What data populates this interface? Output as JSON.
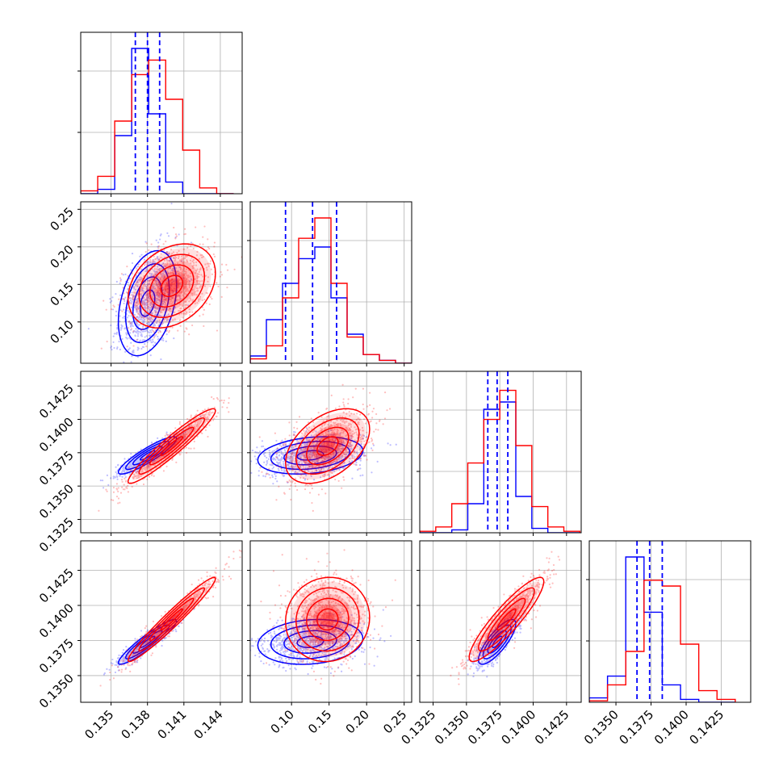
{
  "chart_data": {
    "type": "corner",
    "parameters": [
      {
        "id": "p1",
        "xlim": [
          0.1325,
          0.1458
        ],
        "ticks": [
          0.135,
          0.138,
          0.141,
          0.144
        ],
        "tick_labels": [
          "0.135",
          "0.138",
          "0.141",
          "0.144"
        ]
      },
      {
        "id": "p2",
        "xlim": [
          0.045,
          0.26
        ],
        "ticks": [
          0.1,
          0.15,
          0.2,
          0.25
        ],
        "tick_labels": [
          "0.10",
          "0.15",
          "0.20",
          "0.25"
        ]
      },
      {
        "id": "p3",
        "xlim": [
          0.1315,
          0.1436
        ],
        "ticks": [
          0.1325,
          0.135,
          0.1375,
          0.14,
          0.1425
        ],
        "tick_labels": [
          "0.1325",
          "0.1350",
          "0.1375",
          "0.1400",
          "0.1425"
        ]
      },
      {
        "id": "p4",
        "xlim": [
          0.1331,
          0.1446
        ],
        "ticks": [
          0.135,
          0.1375,
          0.14,
          0.1425
        ],
        "tick_labels": [
          "0.1350",
          "0.1375",
          "0.1400",
          "0.1425"
        ]
      }
    ],
    "series": [
      {
        "color": "#0000ff",
        "quantiles": [
          [
            0.137,
            0.138,
            0.139
          ],
          [
            0.092,
            0.128,
            0.16
          ],
          [
            0.1366,
            0.1373,
            0.1381
          ],
          [
            0.1365,
            0.1374,
            0.1383
          ]
        ],
        "means": [
          0.138,
          0.125,
          0.1373,
          0.1374
        ],
        "sds": [
          0.0012,
          0.035,
          0.0007,
          0.0008
        ],
        "hist_edges": [
          [
            0.1325,
            0.1339,
            0.1353,
            0.1367,
            0.1381,
            0.1395,
            0.1409,
            0.1423,
            0.1437,
            0.1451
          ],
          [
            0.045,
            0.0665,
            0.088,
            0.1095,
            0.131,
            0.1525,
            0.174,
            0.1955,
            0.217,
            0.2385,
            0.26
          ],
          [
            0.1315,
            0.1327,
            0.1339,
            0.1351,
            0.1363,
            0.1375,
            0.1387,
            0.1399,
            0.1411,
            0.1423,
            0.1435
          ],
          [
            0.1331,
            0.1344,
            0.1357,
            0.137,
            0.1383,
            0.1396,
            0.1409,
            0.1422,
            0.1435
          ]
        ],
        "hist": [
          [
            0,
            3,
            40,
            100,
            55,
            8,
            0,
            0,
            0
          ],
          [
            5,
            30,
            55,
            72,
            80,
            45,
            20,
            6,
            2,
            0
          ],
          [
            0,
            0,
            2,
            20,
            85,
            90,
            25,
            3,
            0,
            0
          ],
          [
            3,
            18,
            100,
            62,
            12,
            2,
            0,
            0
          ]
        ]
      },
      {
        "color": "#ff0000",
        "means": [
          0.14,
          0.148,
          0.138,
          0.139
        ],
        "sds": [
          0.0018,
          0.028,
          0.0014,
          0.0015
        ],
        "hist_edges": [
          [
            0.1325,
            0.1339,
            0.1353,
            0.1367,
            0.1381,
            0.1395,
            0.1409,
            0.1423,
            0.1437,
            0.1451
          ],
          [
            0.045,
            0.0665,
            0.088,
            0.1095,
            0.131,
            0.1525,
            0.174,
            0.1955,
            0.217,
            0.2385,
            0.26
          ],
          [
            0.1315,
            0.1327,
            0.1339,
            0.1351,
            0.1363,
            0.1375,
            0.1387,
            0.1399,
            0.1411,
            0.1423,
            0.1435
          ],
          [
            0.1331,
            0.1344,
            0.1357,
            0.137,
            0.1383,
            0.1396,
            0.1409,
            0.1422,
            0.1435
          ]
        ],
        "hist": [
          [
            2,
            12,
            50,
            82,
            92,
            65,
            30,
            4,
            0
          ],
          [
            3,
            12,
            45,
            86,
            100,
            55,
            18,
            6,
            2,
            0
          ],
          [
            1,
            4,
            20,
            48,
            78,
            98,
            60,
            18,
            4,
            1
          ],
          [
            1,
            12,
            35,
            84,
            80,
            40,
            8,
            2
          ]
        ]
      }
    ],
    "correlations": {
      "blue": {
        "p1-p2": 0.35,
        "p1-p3": 0.9,
        "p1-p4": 0.93,
        "p2-p3": 0.25,
        "p2-p4": 0.15,
        "p3-p4": 0.8
      },
      "red": {
        "p1-p2": 0.3,
        "p1-p3": 0.95,
        "p1-p4": 0.97,
        "p2-p3": 0.45,
        "p2-p4": 0.05,
        "p3-p4": 0.9
      }
    },
    "grid": true
  }
}
